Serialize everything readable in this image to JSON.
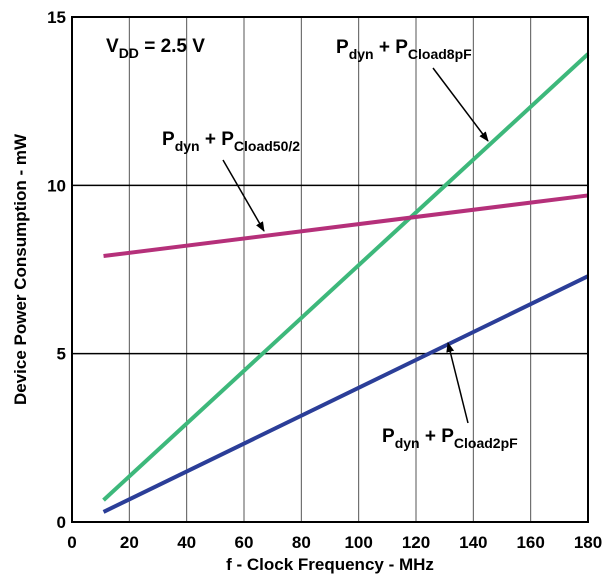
{
  "chart_data": {
    "type": "line",
    "xlabel": "f - Clock Frequency - MHz",
    "ylabel": "Device Power Consumption - mW",
    "xlim": [
      0,
      180
    ],
    "ylim": [
      0,
      15
    ],
    "x_ticks": [
      0,
      20,
      40,
      60,
      80,
      100,
      120,
      140,
      160,
      180
    ],
    "y_ticks": [
      0,
      5,
      10,
      15
    ],
    "x_grid": true,
    "y_grid_values": [
      5,
      10
    ],
    "annotation_vdd": {
      "main": "V",
      "sub": "DD",
      "rest": " = 2.5 V"
    },
    "series": [
      {
        "key": "cload8",
        "label": {
          "a": "P",
          "a_sub": "dyn",
          "mid": " + P",
          "b_sub": "Cload8pF"
        },
        "color": "#3db87b",
        "x": [
          11,
          180
        ],
        "y": [
          0.65,
          13.9
        ]
      },
      {
        "key": "cload50",
        "label": {
          "a": "P",
          "a_sub": "dyn",
          "mid": " + P",
          "b_sub": "Cload50/2"
        },
        "color": "#b5307a",
        "x": [
          11,
          180
        ],
        "y": [
          7.9,
          9.7
        ]
      },
      {
        "key": "cload2",
        "label": {
          "a": "P",
          "a_sub": "dyn",
          "mid": " + P",
          "b_sub": "Cload2pF"
        },
        "color": "#2b3e98",
        "x": [
          11,
          180
        ],
        "y": [
          0.3,
          7.3
        ]
      }
    ]
  }
}
